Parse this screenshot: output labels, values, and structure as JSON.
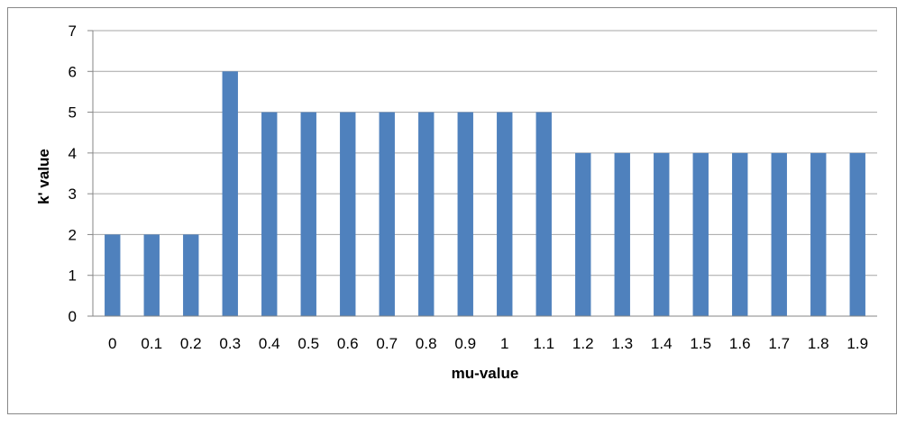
{
  "chart_data": {
    "type": "bar",
    "title": "",
    "xlabel": "mu-value",
    "ylabel": "k' value",
    "categories": [
      "0",
      "0.1",
      "0.2",
      "0.3",
      "0.4",
      "0.5",
      "0.6",
      "0.7",
      "0.8",
      "0.9",
      "1",
      "1.1",
      "1.2",
      "1.3",
      "1.4",
      "1.5",
      "1.6",
      "1.7",
      "1.8",
      "1.9"
    ],
    "values": [
      2,
      2,
      2,
      6,
      5,
      5,
      5,
      5,
      5,
      5,
      5,
      5,
      4,
      4,
      4,
      4,
      4,
      4,
      4,
      4
    ],
    "ylim": [
      0,
      7
    ],
    "yticks": [
      "0",
      "1",
      "2",
      "3",
      "4",
      "5",
      "6",
      "7"
    ],
    "grid": true,
    "legend": "none",
    "bar_color": "#4f81bd",
    "grid_color": "#a6a6a6"
  }
}
